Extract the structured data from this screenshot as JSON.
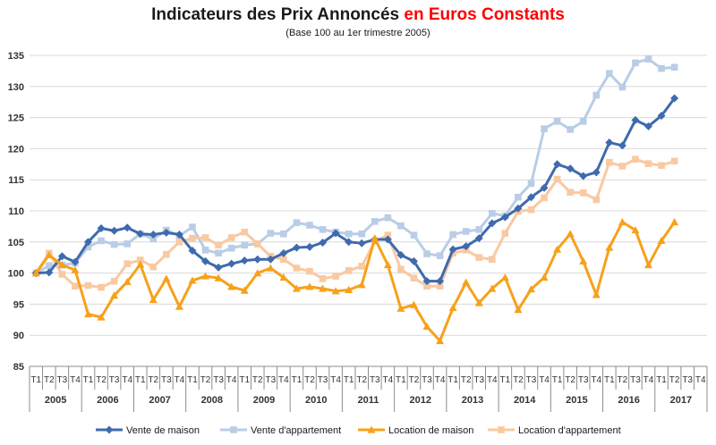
{
  "chart_data": {
    "type": "line",
    "title_part1": "Indicateurs des Prix Annoncés ",
    "title_part2": "en Euros Constants",
    "subtitle": "(Base 100 au 1er trimestre 2005)",
    "xlabel": "",
    "ylabel": "",
    "ylim": [
      85,
      135
    ],
    "yticks": [
      85,
      90,
      95,
      100,
      105,
      110,
      115,
      120,
      125,
      130,
      135
    ],
    "grid": true,
    "legend_position": "bottom",
    "quarters": [
      "T1",
      "T2",
      "T3",
      "T4"
    ],
    "years": [
      "2005",
      "2006",
      "2007",
      "2008",
      "2009",
      "2010",
      "2011",
      "2012",
      "2013",
      "2014",
      "2015",
      "2016",
      "2017"
    ],
    "categories": [
      "2005 T1",
      "2005 T2",
      "2005 T3",
      "2005 T4",
      "2006 T1",
      "2006 T2",
      "2006 T3",
      "2006 T4",
      "2007 T1",
      "2007 T2",
      "2007 T3",
      "2007 T4",
      "2008 T1",
      "2008 T2",
      "2008 T3",
      "2008 T4",
      "2009 T1",
      "2009 T2",
      "2009 T3",
      "2009 T4",
      "2010 T1",
      "2010 T2",
      "2010 T3",
      "2010 T4",
      "2011 T1",
      "2011 T2",
      "2011 T3",
      "2011 T4",
      "2012 T1",
      "2012 T2",
      "2012 T3",
      "2012 T4",
      "2013 T1",
      "2013 T2",
      "2013 T3",
      "2013 T4",
      "2014 T1",
      "2014 T2",
      "2014 T3",
      "2014 T4",
      "2015 T1",
      "2015 T2",
      "2015 T3",
      "2015 T4",
      "2016 T1",
      "2016 T2",
      "2016 T3",
      "2016 T4",
      "2017 T1",
      "2017 T2",
      "2017 T3",
      "2017 T4"
    ],
    "series": [
      {
        "name": "Vente de maison",
        "color": "#3f6aad",
        "marker": "diamond",
        "values": [
          100.0,
          100.1,
          102.7,
          101.8,
          105.0,
          107.2,
          106.8,
          107.3,
          106.3,
          106.2,
          106.5,
          106.2,
          103.6,
          101.9,
          100.9,
          101.5,
          102.0,
          102.2,
          102.2,
          103.2,
          104.1,
          104.2,
          104.9,
          106.4,
          105.0,
          104.8,
          105.4,
          105.4,
          102.9,
          101.9,
          98.7,
          98.7,
          103.8,
          104.3,
          105.6,
          108.0,
          109.0,
          110.4,
          112.2,
          113.7,
          117.5,
          116.8,
          115.6,
          116.2,
          121.0,
          120.5,
          124.6,
          123.6,
          125.3,
          128.1,
          null,
          null
        ]
      },
      {
        "name": "Vente d'appartement",
        "color": "#b9cde6",
        "marker": "square",
        "values": [
          100.0,
          101.2,
          101.3,
          101.6,
          104.2,
          105.2,
          104.6,
          104.7,
          106.3,
          105.5,
          106.9,
          106.0,
          107.4,
          103.7,
          103.2,
          104.0,
          104.5,
          104.7,
          106.4,
          106.3,
          108.1,
          107.7,
          107.0,
          106.6,
          106.3,
          106.3,
          108.3,
          108.9,
          107.6,
          106.1,
          103.1,
          102.8,
          106.2,
          106.7,
          107.0,
          109.6,
          109.2,
          112.2,
          114.4,
          123.2,
          124.4,
          123.1,
          124.4,
          128.6,
          132.1,
          129.9,
          133.8,
          134.4,
          132.9,
          133.1,
          null,
          null
        ]
      },
      {
        "name": "Location de maison",
        "color": "#f7a11a",
        "marker": "triangle",
        "values": [
          100.0,
          102.9,
          101.3,
          100.5,
          93.4,
          92.9,
          96.4,
          98.6,
          101.4,
          95.7,
          99.1,
          94.6,
          98.8,
          99.5,
          99.2,
          97.8,
          97.2,
          100.0,
          100.8,
          99.3,
          97.5,
          97.8,
          97.5,
          97.1,
          97.3,
          98.1,
          105.6,
          101.3,
          94.3,
          94.9,
          91.4,
          89.1,
          94.4,
          98.5,
          95.2,
          97.5,
          99.3,
          94.1,
          97.4,
          99.3,
          103.8,
          106.3,
          101.9,
          96.5,
          104.1,
          108.2,
          106.9,
          101.3,
          105.2,
          108.2,
          null,
          null
        ]
      },
      {
        "name": "Location d'appartement",
        "color": "#f9c9a2",
        "marker": "square",
        "values": [
          100.0,
          103.2,
          99.8,
          97.9,
          98.0,
          97.7,
          98.7,
          101.5,
          102.1,
          101.0,
          103.0,
          105.0,
          105.6,
          105.7,
          104.5,
          105.7,
          106.6,
          104.7,
          102.7,
          102.2,
          100.8,
          100.3,
          99.1,
          99.5,
          100.4,
          101.1,
          105.1,
          106.1,
          100.6,
          99.2,
          97.9,
          97.9,
          103.2,
          103.7,
          102.5,
          102.2,
          106.4,
          109.9,
          110.2,
          112.1,
          115.1,
          113.0,
          112.9,
          111.8,
          117.8,
          117.2,
          118.3,
          117.6,
          117.3,
          118.0,
          null,
          null
        ]
      }
    ]
  }
}
